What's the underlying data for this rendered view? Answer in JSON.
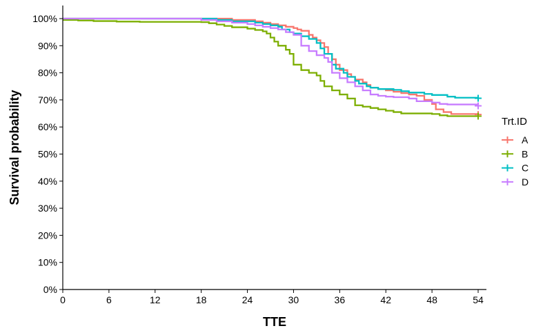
{
  "chart_data": {
    "type": "line",
    "step": true,
    "xlabel": "TTE",
    "ylabel": "Survival probability",
    "xlim": [
      0,
      55
    ],
    "ylim": [
      0,
      1
    ],
    "x_ticks": [
      0,
      6,
      12,
      18,
      24,
      30,
      36,
      42,
      48,
      54
    ],
    "x_tick_labels": [
      "0",
      "6",
      "12",
      "18",
      "24",
      "30",
      "36",
      "42",
      "48",
      "54"
    ],
    "y_ticks": [
      0,
      0.1,
      0.2,
      0.3,
      0.4,
      0.5,
      0.6,
      0.7,
      0.8,
      0.9,
      1.0
    ],
    "y_tick_labels": [
      "0%",
      "10%",
      "20%",
      "30%",
      "40%",
      "50%",
      "60%",
      "70%",
      "80%",
      "90%",
      "100%"
    ],
    "grid": false,
    "legend": {
      "title": "Trt.ID",
      "placement": "right"
    },
    "series": [
      {
        "name": "A",
        "color": "#F8766D",
        "points": [
          [
            0,
            1.0
          ],
          [
            22,
            0.995
          ],
          [
            25,
            0.99
          ],
          [
            26,
            0.985
          ],
          [
            27,
            0.98
          ],
          [
            28,
            0.975
          ],
          [
            29,
            0.97
          ],
          [
            30,
            0.965
          ],
          [
            30.5,
            0.96
          ],
          [
            31,
            0.955
          ],
          [
            32,
            0.94
          ],
          [
            32.5,
            0.93
          ],
          [
            33,
            0.92
          ],
          [
            33.5,
            0.91
          ],
          [
            34,
            0.895
          ],
          [
            34.5,
            0.87
          ],
          [
            35,
            0.85
          ],
          [
            35.5,
            0.83
          ],
          [
            36,
            0.81
          ],
          [
            37,
            0.795
          ],
          [
            37.5,
            0.785
          ],
          [
            38,
            0.775
          ],
          [
            39,
            0.765
          ],
          [
            39.5,
            0.755
          ],
          [
            40,
            0.745
          ],
          [
            41,
            0.74
          ],
          [
            42,
            0.735
          ],
          [
            43,
            0.73
          ],
          [
            44,
            0.725
          ],
          [
            45,
            0.72
          ],
          [
            46,
            0.715
          ],
          [
            47,
            0.7
          ],
          [
            48,
            0.685
          ],
          [
            48.5,
            0.665
          ],
          [
            49.5,
            0.655
          ],
          [
            50.5,
            0.648
          ],
          [
            54,
            0.646
          ]
        ]
      },
      {
        "name": "B",
        "color": "#7CAE00",
        "points": [
          [
            0,
            0.995
          ],
          [
            2,
            0.993
          ],
          [
            4,
            0.991
          ],
          [
            7,
            0.989
          ],
          [
            10,
            0.988
          ],
          [
            14,
            0.988
          ],
          [
            18,
            0.987
          ],
          [
            19,
            0.983
          ],
          [
            20,
            0.978
          ],
          [
            21,
            0.973
          ],
          [
            22,
            0.968
          ],
          [
            24,
            0.963
          ],
          [
            25,
            0.958
          ],
          [
            26,
            0.953
          ],
          [
            26.5,
            0.945
          ],
          [
            27,
            0.93
          ],
          [
            27.5,
            0.915
          ],
          [
            28,
            0.9
          ],
          [
            29,
            0.885
          ],
          [
            29.5,
            0.87
          ],
          [
            30,
            0.83
          ],
          [
            31,
            0.81
          ],
          [
            32,
            0.8
          ],
          [
            33,
            0.79
          ],
          [
            33.5,
            0.77
          ],
          [
            34,
            0.75
          ],
          [
            35,
            0.735
          ],
          [
            36,
            0.72
          ],
          [
            37,
            0.705
          ],
          [
            38,
            0.68
          ],
          [
            39,
            0.675
          ],
          [
            40,
            0.67
          ],
          [
            41,
            0.665
          ],
          [
            42,
            0.66
          ],
          [
            43,
            0.655
          ],
          [
            44,
            0.65
          ],
          [
            48,
            0.648
          ],
          [
            49,
            0.643
          ],
          [
            50,
            0.64
          ],
          [
            54,
            0.64
          ]
        ]
      },
      {
        "name": "C",
        "color": "#00BFC4",
        "points": [
          [
            0,
            1.0
          ],
          [
            19,
            1.0
          ],
          [
            20,
            0.995
          ],
          [
            22,
            0.99
          ],
          [
            25,
            0.985
          ],
          [
            26,
            0.98
          ],
          [
            27,
            0.975
          ],
          [
            28,
            0.97
          ],
          [
            28.5,
            0.96
          ],
          [
            29.5,
            0.95
          ],
          [
            30,
            0.945
          ],
          [
            31,
            0.935
          ],
          [
            32,
            0.925
          ],
          [
            33,
            0.91
          ],
          [
            33.5,
            0.89
          ],
          [
            34,
            0.87
          ],
          [
            35,
            0.83
          ],
          [
            35.5,
            0.815
          ],
          [
            36.5,
            0.8
          ],
          [
            37,
            0.785
          ],
          [
            38,
            0.77
          ],
          [
            38.5,
            0.76
          ],
          [
            39.5,
            0.75
          ],
          [
            40,
            0.745
          ],
          [
            41,
            0.74
          ],
          [
            43,
            0.737
          ],
          [
            44,
            0.732
          ],
          [
            45,
            0.727
          ],
          [
            47,
            0.722
          ],
          [
            48,
            0.718
          ],
          [
            50,
            0.712
          ],
          [
            51,
            0.708
          ],
          [
            54,
            0.706
          ]
        ]
      },
      {
        "name": "D",
        "color": "#C77CFF",
        "points": [
          [
            0,
            1.0
          ],
          [
            18,
            0.995
          ],
          [
            20,
            0.99
          ],
          [
            22,
            0.985
          ],
          [
            24,
            0.98
          ],
          [
            25,
            0.975
          ],
          [
            26,
            0.97
          ],
          [
            27,
            0.965
          ],
          [
            28,
            0.96
          ],
          [
            29,
            0.95
          ],
          [
            30,
            0.94
          ],
          [
            31,
            0.9
          ],
          [
            32,
            0.88
          ],
          [
            33,
            0.865
          ],
          [
            34,
            0.855
          ],
          [
            34.5,
            0.84
          ],
          [
            35,
            0.8
          ],
          [
            36,
            0.78
          ],
          [
            37,
            0.765
          ],
          [
            38,
            0.75
          ],
          [
            39,
            0.735
          ],
          [
            40,
            0.72
          ],
          [
            41,
            0.715
          ],
          [
            42,
            0.712
          ],
          [
            43,
            0.71
          ],
          [
            45,
            0.705
          ],
          [
            46,
            0.695
          ],
          [
            48,
            0.69
          ],
          [
            49,
            0.685
          ],
          [
            50,
            0.683
          ],
          [
            54,
            0.678
          ]
        ]
      }
    ]
  }
}
